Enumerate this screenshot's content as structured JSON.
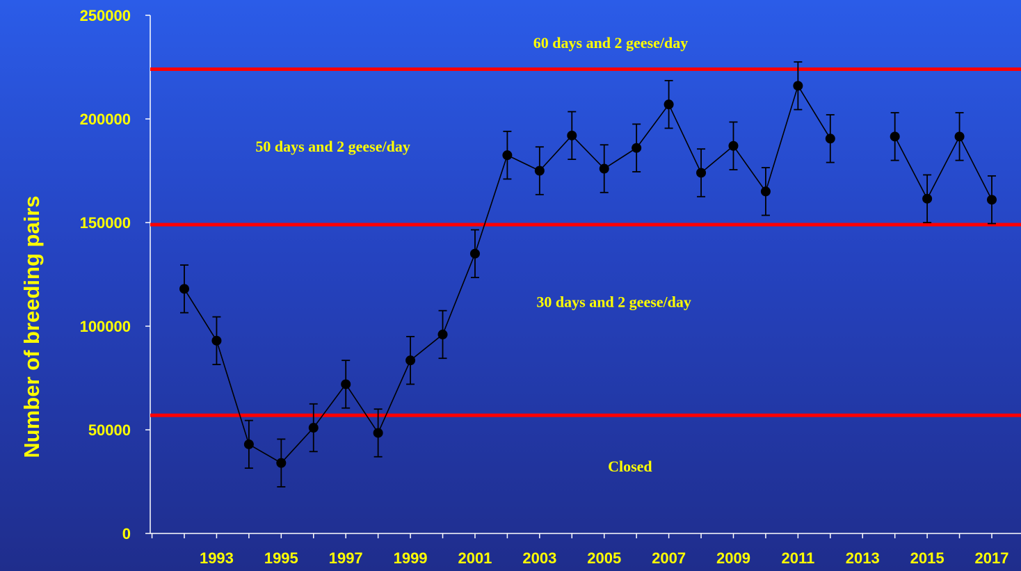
{
  "chart_data": {
    "type": "line",
    "title": "",
    "xlabel": "",
    "ylabel": "Number of breeding pairs",
    "ylim": [
      0,
      250000
    ],
    "xlim": [
      1991,
      2018
    ],
    "y_ticks": [
      0,
      50000,
      100000,
      150000,
      200000,
      250000
    ],
    "y_tick_labels": [
      "0",
      "50000",
      "100000",
      "150000",
      "200000",
      "250000"
    ],
    "x_ticks": [
      1993,
      1995,
      1997,
      1999,
      2001,
      2003,
      2005,
      2007,
      2009,
      2011,
      2013,
      2015,
      2017
    ],
    "x_tick_labels": [
      "1993",
      "1995",
      "1997",
      "1999",
      "2001",
      "2003",
      "2005",
      "2007",
      "2009",
      "2011",
      "2013",
      "2015",
      "2017"
    ],
    "grid": false,
    "series": [
      {
        "x": [
          1992,
          1993,
          1994,
          1995,
          1996,
          1997,
          1998,
          1999,
          2000,
          2001,
          2002,
          2003,
          2004,
          2005,
          2006,
          2007,
          2008,
          2009,
          2010,
          2011,
          2012,
          2013,
          2014,
          2015,
          2016,
          2017
        ],
        "y": [
          118000,
          93000,
          43000,
          34000,
          51000,
          72000,
          48500,
          83500,
          96000,
          135000,
          182500,
          175000,
          192000,
          176000,
          186000,
          207000,
          174000,
          187000,
          165000,
          216000,
          190500,
          null,
          191500,
          161500,
          191500,
          161000
        ],
        "error": [
          11500,
          11500,
          11500,
          11500,
          11500,
          11500,
          11500,
          11500,
          11500,
          11500,
          11500,
          11500,
          11500,
          11500,
          11500,
          11500,
          11500,
          11500,
          11500,
          11500,
          11500,
          null,
          11500,
          11500,
          11500,
          11500
        ],
        "color": "#000000"
      }
    ],
    "thresholds": [
      {
        "y": 224000,
        "color": "#ff0000"
      },
      {
        "y": 149000,
        "color": "#ff0000"
      },
      {
        "y": 57000,
        "color": "#ff0000"
      }
    ],
    "annotations": [
      {
        "text": "60 days and 2 geese/day",
        "x": 2005.2,
        "y": 236000
      },
      {
        "text": "50 days and 2 geese/day",
        "x": 1996.6,
        "y": 186000
      },
      {
        "text": "30 days and 2 geese/day",
        "x": 2005.3,
        "y": 111000
      },
      {
        "text": "Closed",
        "x": 2005.8,
        "y": 31500
      }
    ],
    "colors": {
      "text": "#ffff00",
      "axis": "#ffffff",
      "series": "#000000",
      "threshold": "#ff0000"
    }
  }
}
